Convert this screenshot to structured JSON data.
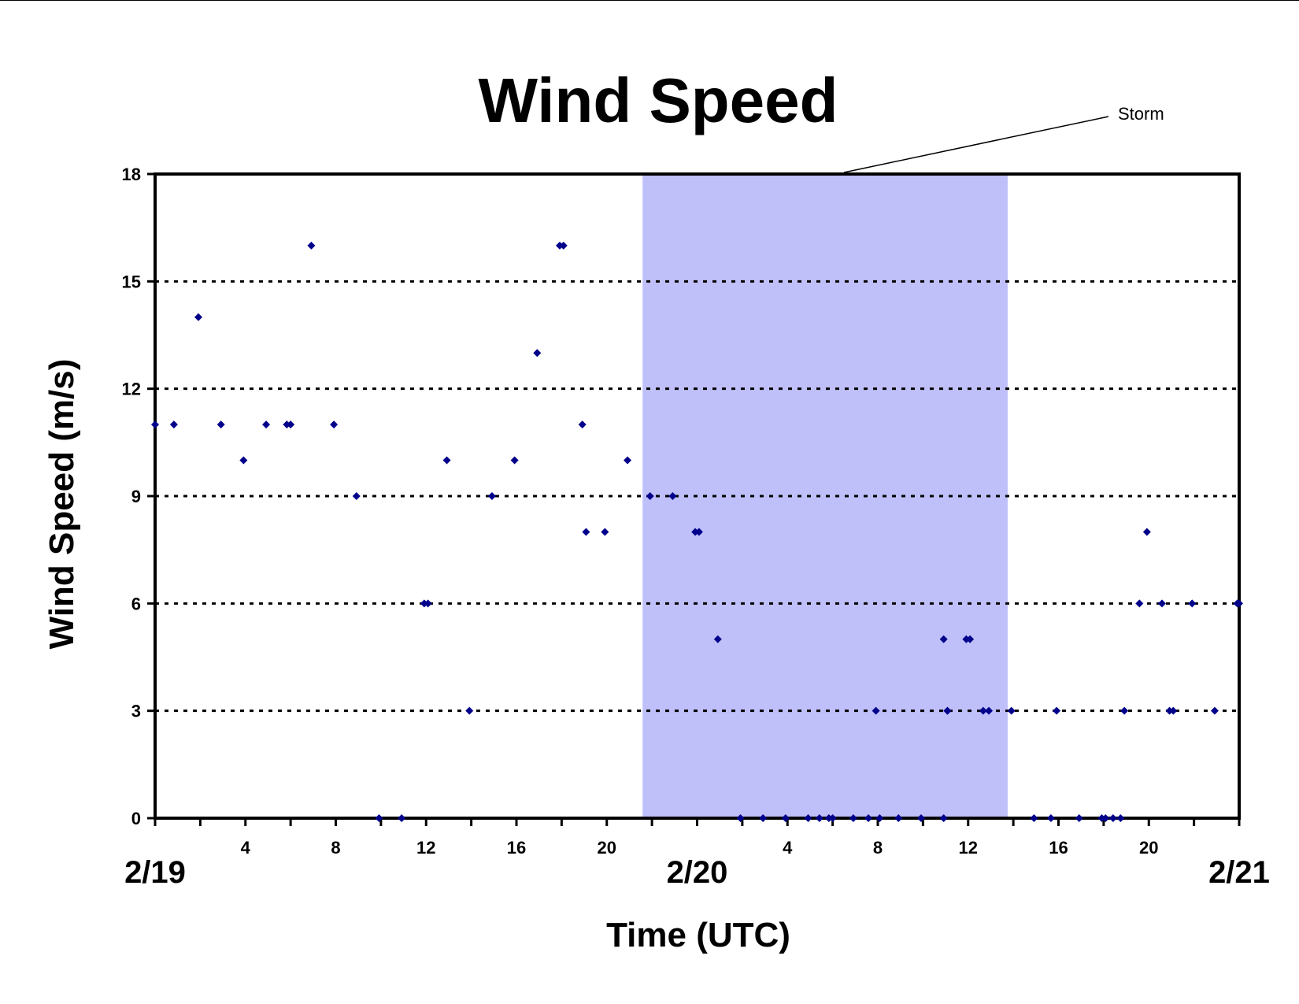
{
  "chart_data": {
    "type": "scatter",
    "title": "Wind Speed",
    "xlabel": "Time (UTC)",
    "ylabel": "Wind Speed (m/s)",
    "xlim": [
      "2/19 00:00",
      "2/21 00:00"
    ],
    "ylim": [
      0,
      18
    ],
    "yticks": [
      0,
      3,
      6,
      9,
      12,
      15,
      18
    ],
    "x_hour_ticks": [
      "4",
      "8",
      "12",
      "16",
      "20",
      "4",
      "8",
      "12",
      "16",
      "20"
    ],
    "x_date_labels": [
      "2/19",
      "2/20",
      "2/21"
    ],
    "grid": "horizontal dotted at 3, 6, 9, 12, 15",
    "legend": "none",
    "shaded_region": {
      "label": "Storm",
      "start": "2/19 21:35",
      "end": "2/20 13:45",
      "color": "#bfbffa"
    },
    "marker_color": "#00008b",
    "series": [
      {
        "x": [
          "2/19 00:00",
          "2/19 00:50",
          "2/19 01:55",
          "2/19 02:55",
          "2/19 03:55",
          "2/19 04:55",
          "2/19 05:50",
          "2/19 06:00",
          "2/19 06:55",
          "2/19 07:55",
          "2/19 08:55",
          "2/19 09:55",
          "2/19 10:55",
          "2/19 11:55",
          "2/19 12:05",
          "2/19 12:55",
          "2/19 13:55",
          "2/19 14:55",
          "2/19 15:55",
          "2/19 16:55",
          "2/19 17:55",
          "2/19 18:05",
          "2/19 18:55",
          "2/19 19:05",
          "2/19 19:55",
          "2/19 20:55",
          "2/19 21:55",
          "2/19 22:55",
          "2/19 23:55",
          "2/20 00:05",
          "2/20 00:55",
          "2/20 01:55",
          "2/20 02:55",
          "2/20 03:55",
          "2/20 04:55",
          "2/20 05:25",
          "2/20 05:50",
          "2/20 06:00",
          "2/20 06:55",
          "2/20 07:35",
          "2/20 07:55",
          "2/20 08:05",
          "2/20 08:55",
          "2/20 09:55",
          "2/20 10:55",
          "2/20 10:55",
          "2/20 11:05",
          "2/20 11:05",
          "2/20 11:55",
          "2/20 12:05",
          "2/20 12:40",
          "2/20 12:55",
          "2/20 13:55",
          "2/20 14:55",
          "2/20 15:40",
          "2/20 15:55",
          "2/20 16:55",
          "2/20 17:55",
          "2/20 18:05",
          "2/20 18:25",
          "2/20 18:45",
          "2/20 18:55",
          "2/20 19:35",
          "2/20 19:55",
          "2/20 20:35",
          "2/20 20:55",
          "2/20 21:05",
          "2/20 21:55",
          "2/20 22:55",
          "2/20 23:55",
          "2/21 00:00"
        ],
        "y": [
          11,
          11,
          14,
          11,
          10,
          11,
          11,
          11,
          16,
          11,
          9,
          0,
          0,
          6,
          6,
          10,
          3,
          9,
          10,
          13,
          16,
          16,
          11,
          8,
          8,
          10,
          9,
          9,
          8,
          8,
          5,
          0,
          0,
          0,
          0,
          0,
          0,
          0,
          0,
          0,
          3,
          0,
          0,
          0,
          5,
          0,
          3,
          3,
          5,
          5,
          3,
          3,
          3,
          0,
          0,
          3,
          0,
          0,
          0,
          0,
          0,
          3,
          6,
          8,
          6,
          3,
          3,
          6,
          3,
          6,
          6
        ]
      }
    ]
  }
}
